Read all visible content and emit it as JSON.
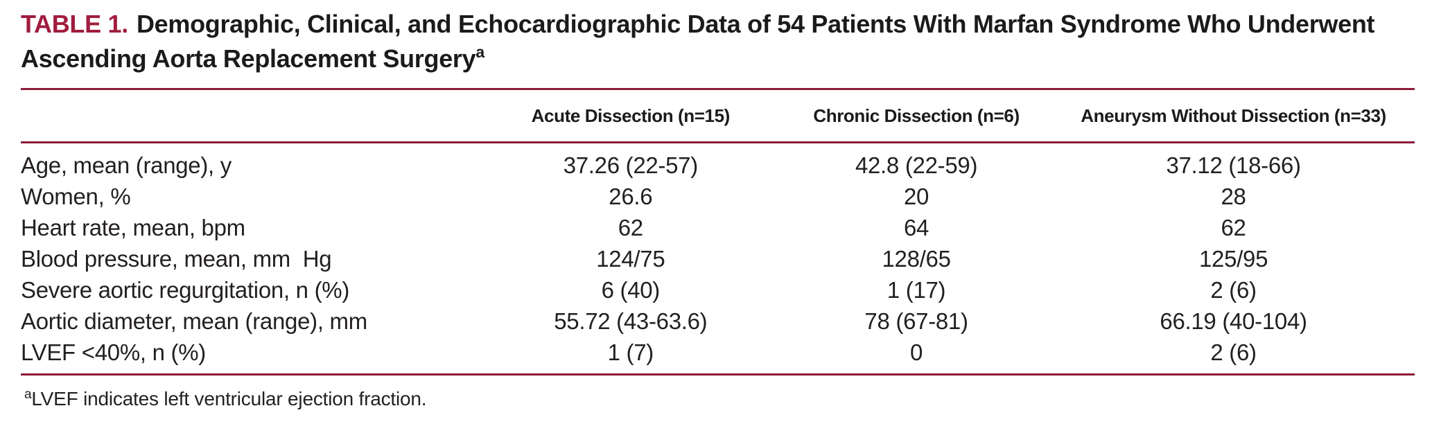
{
  "title": {
    "label": "TABLE 1.",
    "text": "Demographic, Clinical, and Echocardiographic Data of 54 Patients With Marfan Syndrome Who Underwent Ascending Aorta Replacement Surgery",
    "footnote_marker": "a"
  },
  "colors": {
    "accent_title": "#a01c3e",
    "rule": "#8c1b3a",
    "text": "#231f20",
    "background": "#ffffff"
  },
  "table": {
    "columns": [
      "",
      "Acute Dissection (n=15)",
      "Chronic Dissection (n=6)",
      "Aneurysm Without Dissection (n=33)"
    ],
    "rows": [
      {
        "label": "Age, mean (range), y",
        "values": [
          "37.26 (22-57)",
          "42.8 (22-59)",
          "37.12 (18-66)"
        ]
      },
      {
        "label": "Women, %",
        "values": [
          "26.6",
          "20",
          "28"
        ]
      },
      {
        "label": "Heart rate, mean, bpm",
        "values": [
          "62",
          "64",
          "62"
        ]
      },
      {
        "label": "Blood pressure, mean, mm  Hg",
        "values": [
          "124/75",
          "128/65",
          "125/95"
        ]
      },
      {
        "label": "Severe aortic regurgitation, n (%)",
        "values": [
          "6 (40)",
          "1 (17)",
          "2 (6)"
        ]
      },
      {
        "label": "Aortic diameter, mean (range), mm",
        "values": [
          "55.72 (43-63.6)",
          "78 (67-81)",
          "66.19 (40-104)"
        ]
      },
      {
        "label": "LVEF <40%, n (%)",
        "values": [
          "1 (7)",
          "0",
          "2 (6)"
        ]
      }
    ]
  },
  "footnote": {
    "marker": "a",
    "text": "LVEF indicates left ventricular ejection fraction."
  }
}
